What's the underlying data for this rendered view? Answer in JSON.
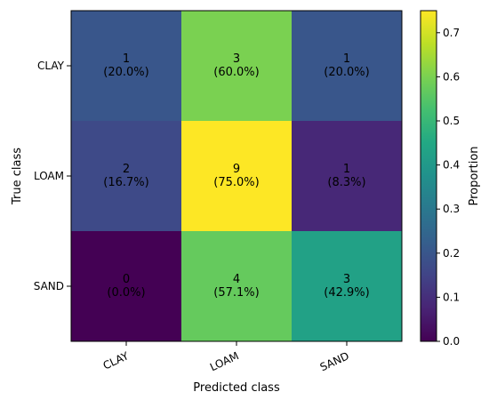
{
  "chart_data": {
    "type": "heatmap",
    "title": "",
    "xlabel": "Predicted class",
    "ylabel": "True class",
    "x_categories": [
      "CLAY",
      "LOAM",
      "SAND"
    ],
    "y_categories": [
      "CLAY",
      "LOAM",
      "SAND"
    ],
    "counts": [
      [
        1,
        3,
        1
      ],
      [
        2,
        9,
        1
      ],
      [
        0,
        4,
        3
      ]
    ],
    "proportions": [
      [
        0.2,
        0.6,
        0.2
      ],
      [
        0.16666666666666666,
        0.75,
        0.08333333333333333
      ],
      [
        0.0,
        0.5714285714285714,
        0.42857142857142855
      ]
    ],
    "cell_labels": [
      [
        "1\n(20.0%)",
        "3\n(60.0%)",
        "1\n(20.0%)"
      ],
      [
        "2\n(16.7%)",
        "9\n(75.0%)",
        "1\n(8.3%)"
      ],
      [
        "0\n(0.0%)",
        "4\n(57.1%)",
        "3\n(42.9%)"
      ]
    ],
    "colormap": "viridis",
    "colorbar": {
      "label": "Proportion",
      "range": [
        0.0,
        0.75
      ],
      "ticks": [
        0.0,
        0.1,
        0.2,
        0.3,
        0.4,
        0.5,
        0.6,
        0.7
      ],
      "tick_labels": [
        "0.0",
        "0.1",
        "0.2",
        "0.3",
        "0.4",
        "0.5",
        "0.6",
        "0.7"
      ]
    },
    "grid": false
  }
}
